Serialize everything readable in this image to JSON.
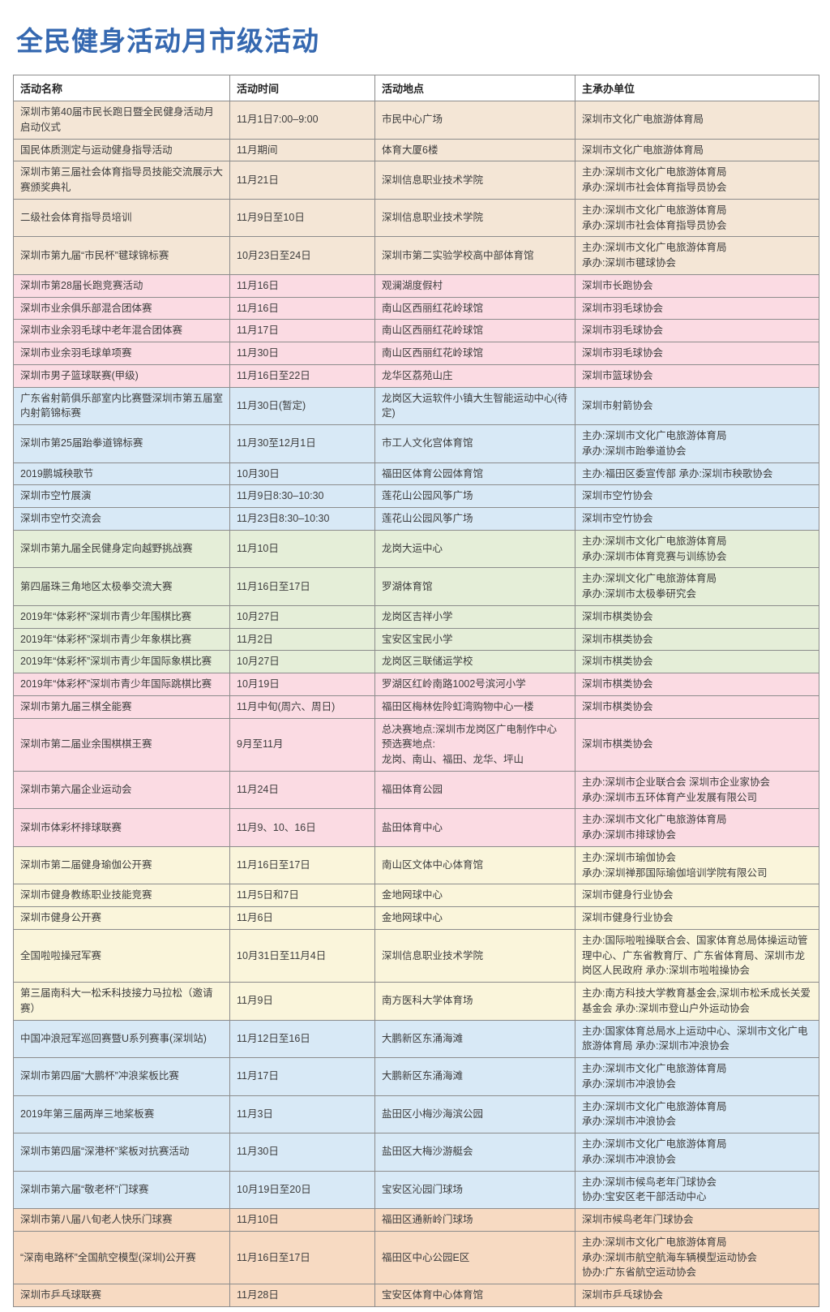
{
  "page": {
    "title": "全民健身活动月市级活动"
  },
  "colors": {
    "title": "#3568b0",
    "border": "#8c8c8c",
    "text": "#3d3d3d",
    "beige": "#f4e6d6",
    "pink": "#fbdbe3",
    "blue": "#d8e9f6",
    "green": "#e5eed8",
    "cream": "#faf5db",
    "orange": "#f7dac2"
  },
  "table": {
    "columns": [
      "活动名称",
      "活动时间",
      "活动地点",
      "主承办单位"
    ],
    "rows": [
      {
        "color": "beige",
        "name": "深圳市第40届市民长跑日暨全民健身活动月启动仪式",
        "time": "11月1日7:00–9:00",
        "place": "市民中心广场",
        "org": "深圳市文化广电旅游体育局"
      },
      {
        "color": "beige",
        "name": "国民体质测定与运动健身指导活动",
        "time": "11月期间",
        "place": "体育大厦6楼",
        "org": "深圳市文化广电旅游体育局"
      },
      {
        "color": "beige",
        "name": "深圳市第三届社会体育指导员技能交流展示大赛颁奖典礼",
        "time": "11月21日",
        "place": "深圳信息职业技术学院",
        "org": "主办:深圳市文化广电旅游体育局\n承办:深圳市社会体育指导员协会"
      },
      {
        "color": "beige",
        "name": "二级社会体育指导员培训",
        "time": "11月9日至10日",
        "place": "深圳信息职业技术学院",
        "org": "主办:深圳市文化广电旅游体育局\n承办:深圳市社会体育指导员协会"
      },
      {
        "color": "beige",
        "name": "深圳市第九届“市民杯”毽球锦标赛",
        "time": "10月23日至24日",
        "place": "深圳市第二实验学校高中部体育馆",
        "org": "主办:深圳市文化广电旅游体育局\n承办:深圳市毽球协会"
      },
      {
        "color": "pink",
        "name": "深圳市第28届长跑竞赛活动",
        "time": "11月16日",
        "place": "观澜湖度假村",
        "org": "深圳市长跑协会"
      },
      {
        "color": "pink",
        "name": "深圳市业余俱乐部混合团体赛",
        "time": "11月16日",
        "place": "南山区西丽红花岭球馆",
        "org": "深圳市羽毛球协会"
      },
      {
        "color": "pink",
        "name": "深圳市业余羽毛球中老年混合团体赛",
        "time": "11月17日",
        "place": "南山区西丽红花岭球馆",
        "org": "深圳市羽毛球协会"
      },
      {
        "color": "pink",
        "name": "深圳市业余羽毛球单项赛",
        "time": "11月30日",
        "place": "南山区西丽红花岭球馆",
        "org": "深圳市羽毛球协会"
      },
      {
        "color": "pink",
        "name": "深圳市男子篮球联赛(甲级)",
        "time": "11月16日至22日",
        "place": "龙华区荔苑山庄",
        "org": "深圳市篮球协会"
      },
      {
        "color": "blue",
        "name": "广东省射箭俱乐部室内比赛暨深圳市第五届室内射箭锦标赛",
        "time": "11月30日(暂定)",
        "place": "龙岗区大运软件小镇大生智能运动中心(待定)",
        "org": "深圳市射箭协会"
      },
      {
        "color": "blue",
        "name": "深圳市第25届跆拳道锦标赛",
        "time": "11月30至12月1日",
        "place": "市工人文化宫体育馆",
        "org": "主办:深圳市文化广电旅游体育局\n承办:深圳市跆拳道协会"
      },
      {
        "color": "blue",
        "name": "2019鹏城秧歌节",
        "time": "10月30日",
        "place": "福田区体育公园体育馆",
        "org": "主办:福田区委宣传部 承办:深圳市秧歌协会"
      },
      {
        "color": "blue",
        "name": "深圳市空竹展演",
        "time": "11月9日8:30–10:30",
        "place": "莲花山公园风筝广场",
        "org": "深圳市空竹协会"
      },
      {
        "color": "blue",
        "name": "深圳市空竹交流会",
        "time": "11月23日8:30–10:30",
        "place": "莲花山公园风筝广场",
        "org": "深圳市空竹协会"
      },
      {
        "color": "green",
        "name": "深圳市第九届全民健身定向越野挑战赛",
        "time": "11月10日",
        "place": "龙岗大运中心",
        "org": "主办:深圳市文化广电旅游体育局\n承办:深圳市体育竞赛与训练协会"
      },
      {
        "color": "green",
        "name": "第四届珠三角地区太极拳交流大赛",
        "time": "11月16日至17日",
        "place": "罗湖体育馆",
        "org": "主办:深圳文化广电旅游体育局\n承办:深圳市太极拳研究会"
      },
      {
        "color": "green",
        "name": "2019年“体彩杯”深圳市青少年围棋比赛",
        "time": "10月27日",
        "place": "龙岗区吉祥小学",
        "org": "深圳市棋类协会"
      },
      {
        "color": "green",
        "name": "2019年“体彩杯”深圳市青少年象棋比赛",
        "time": "11月2日",
        "place": "宝安区宝民小学",
        "org": "深圳市棋类协会"
      },
      {
        "color": "green",
        "name": "2019年“体彩杯”深圳市青少年国际象棋比赛",
        "time": "10月27日",
        "place": "龙岗区三联储运学校",
        "org": "深圳市棋类协会"
      },
      {
        "color": "pink",
        "name": "2019年“体彩杯”深圳市青少年国际跳棋比赛",
        "time": "10月19日",
        "place": "罗湖区红岭南路1002号滨河小学",
        "org": "深圳市棋类协会"
      },
      {
        "color": "pink",
        "name": "深圳市第九届三棋全能赛",
        "time": "11月中旬(周六、周日)",
        "place": "福田区梅林佐阾虹湾购物中心一楼",
        "org": "深圳市棋类协会"
      },
      {
        "color": "pink",
        "name": "深圳市第二届业余围棋棋王赛",
        "time": "9月至11月",
        "place": "总决赛地点:深圳市龙岗区广电制作中心\n预选赛地点:\n龙岗、南山、福田、龙华、坪山",
        "org": "深圳市棋类协会"
      },
      {
        "color": "pink",
        "name": "深圳市第六届企业运动会",
        "time": "11月24日",
        "place": "福田体育公园",
        "org": "主办:深圳市企业联合会 深圳市企业家协会\n承办:深圳市五环体育产业发展有限公司"
      },
      {
        "color": "pink",
        "name": "深圳市体彩杯排球联赛",
        "time": "11月9、10、16日",
        "place": "盐田体育中心",
        "org": "主办:深圳市文化广电旅游体育局\n承办:深圳市排球协会"
      },
      {
        "color": "cream",
        "name": "深圳市第二届健身瑜伽公开赛",
        "time": "11月16日至17日",
        "place": "南山区文体中心体育馆",
        "org": "主办:深圳市瑜伽协会\n承办:深圳禅那国际瑜伽培训学院有限公司"
      },
      {
        "color": "cream",
        "name": "深圳市健身教练职业技能竞赛",
        "time": "11月5日和7日",
        "place": "金地网球中心",
        "org": "深圳市健身行业协会"
      },
      {
        "color": "cream",
        "name": "深圳市健身公开赛",
        "time": "11月6日",
        "place": "金地网球中心",
        "org": "深圳市健身行业协会"
      },
      {
        "color": "cream",
        "name": "全国啦啦操冠军赛",
        "time": "10月31日至11月4日",
        "place": "深圳信息职业技术学院",
        "org": "主办:国际啦啦操联合会、国家体育总局体操运动管理中心、广东省教育厅、广东省体育局、深圳市龙岗区人民政府 承办:深圳市啦啦操协会"
      },
      {
        "color": "cream",
        "name": "第三届南科大一松禾科技接力马拉松（邀请赛）",
        "time": "11月9日",
        "place": "南方医科大学体育场",
        "org": "主办:南方科技大学教育基金会,深圳市松禾成长关爱基金会 承办:深圳市登山户外运动协会"
      },
      {
        "color": "blue",
        "name": "中国冲浪冠军巡回赛暨U系列赛事(深圳站)",
        "time": "11月12日至16日",
        "place": "大鹏新区东涌海滩",
        "org": "主办:国家体育总局水上运动中心、深圳市文化广电旅游体育局 承办:深圳市冲浪协会"
      },
      {
        "color": "blue",
        "name": "深圳市第四届“大鹏杯”冲浪桨板比赛",
        "time": "11月17日",
        "place": "大鹏新区东涌海滩",
        "org": "主办:深圳市文化广电旅游体育局\n承办:深圳市冲浪协会"
      },
      {
        "color": "blue",
        "name": "2019年第三届两岸三地桨板赛",
        "time": "11月3日",
        "place": "盐田区小梅沙海滨公园",
        "org": "主办:深圳市文化广电旅游体育局\n承办:深圳市冲浪协会"
      },
      {
        "color": "blue",
        "name": "深圳市第四届“深港杯”桨板对抗赛活动",
        "time": "11月30日",
        "place": "盐田区大梅沙游艇会",
        "org": "主办:深圳市文化广电旅游体育局\n承办:深圳市冲浪协会"
      },
      {
        "color": "blue",
        "name": "深圳市第六届“敬老杯”门球赛",
        "time": "10月19日至20日",
        "place": "宝安区沁园门球场",
        "org": "主办:深圳市候鸟老年门球协会\n协办:宝安区老干部活动中心"
      },
      {
        "color": "orange",
        "name": "深圳市第八届八旬老人快乐门球赛",
        "time": "11月10日",
        "place": "福田区通新岭门球场",
        "org": "深圳市候鸟老年门球协会"
      },
      {
        "color": "orange",
        "name": "“深南电路杯”全国航空模型(深圳)公开赛",
        "time": "11月16日至17日",
        "place": "福田区中心公园E区",
        "org": "主办:深圳市文化广电旅游体育局\n承办:深圳市航空航海车辆模型运动协会\n协办:广东省航空运动协会"
      },
      {
        "color": "orange",
        "name": "深圳市乒乓球联赛",
        "time": "11月28日",
        "place": "宝安区体育中心体育馆",
        "org": "深圳市乒乓球协会"
      }
    ]
  }
}
